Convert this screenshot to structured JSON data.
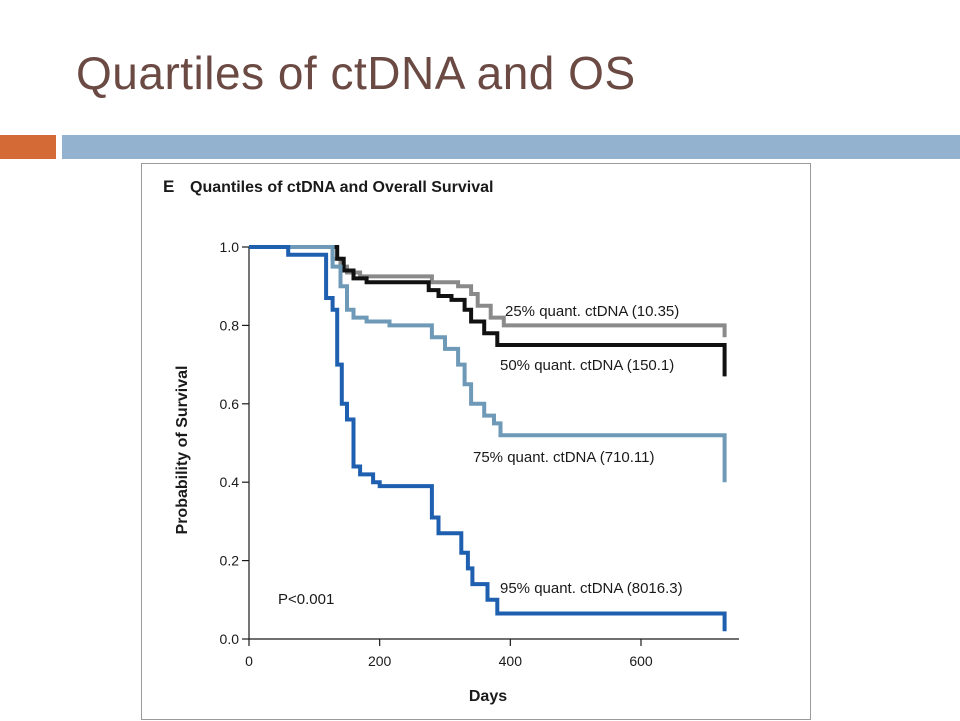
{
  "slide": {
    "title": "Quartiles of ctDNA and OS"
  },
  "colors": {
    "title": "#6b4a44",
    "accent_orange": "#d46a35",
    "accent_blue": "#93b2d0"
  },
  "chart_data": {
    "type": "line",
    "step": true,
    "panel_letter": "E",
    "title": "Quantiles of ctDNA and Overall Survival",
    "xlabel": "Days",
    "ylabel": "Probability of Survival",
    "xlim": [
      0,
      750
    ],
    "ylim": [
      0,
      1.0
    ],
    "x_ticks": [
      0,
      200,
      400,
      600
    ],
    "x_tick_labels": [
      "0",
      "200",
      "400",
      "600"
    ],
    "y_ticks": [
      0,
      0.2,
      0.4,
      0.6,
      0.8,
      1.0
    ],
    "y_tick_labels": [
      "0.0",
      "0.2",
      "0.4",
      "0.6",
      "0.8",
      "1.0"
    ],
    "annotation": "P<0.001",
    "grid": false,
    "series": [
      {
        "name": "25% quant. ctDNA (10.35)",
        "color": "#8a8a8a",
        "points": [
          [
            0,
            1.0
          ],
          [
            128,
            1.0
          ],
          [
            128,
            0.97
          ],
          [
            140,
            0.97
          ],
          [
            140,
            0.95
          ],
          [
            150,
            0.95
          ],
          [
            150,
            0.935
          ],
          [
            170,
            0.935
          ],
          [
            170,
            0.925
          ],
          [
            280,
            0.925
          ],
          [
            280,
            0.91
          ],
          [
            320,
            0.91
          ],
          [
            320,
            0.9
          ],
          [
            340,
            0.9
          ],
          [
            340,
            0.88
          ],
          [
            350,
            0.88
          ],
          [
            350,
            0.85
          ],
          [
            370,
            0.85
          ],
          [
            370,
            0.82
          ],
          [
            390,
            0.82
          ],
          [
            390,
            0.8
          ],
          [
            728,
            0.8
          ],
          [
            728,
            0.77
          ]
        ]
      },
      {
        "name": "50% quant. ctDNA (150.1)",
        "color": "#111111",
        "points": [
          [
            0,
            1.0
          ],
          [
            135,
            1.0
          ],
          [
            135,
            0.97
          ],
          [
            145,
            0.97
          ],
          [
            145,
            0.94
          ],
          [
            160,
            0.94
          ],
          [
            160,
            0.92
          ],
          [
            180,
            0.92
          ],
          [
            180,
            0.91
          ],
          [
            275,
            0.91
          ],
          [
            275,
            0.89
          ],
          [
            290,
            0.89
          ],
          [
            290,
            0.875
          ],
          [
            310,
            0.875
          ],
          [
            310,
            0.865
          ],
          [
            330,
            0.865
          ],
          [
            330,
            0.84
          ],
          [
            340,
            0.84
          ],
          [
            340,
            0.81
          ],
          [
            360,
            0.81
          ],
          [
            360,
            0.78
          ],
          [
            380,
            0.78
          ],
          [
            380,
            0.75
          ],
          [
            728,
            0.75
          ],
          [
            728,
            0.67
          ]
        ]
      },
      {
        "name": "75% quant. ctDNA (710.11)",
        "color": "#6e9ab8",
        "points": [
          [
            0,
            1.0
          ],
          [
            128,
            1.0
          ],
          [
            128,
            0.95
          ],
          [
            140,
            0.95
          ],
          [
            140,
            0.9
          ],
          [
            150,
            0.9
          ],
          [
            150,
            0.84
          ],
          [
            160,
            0.84
          ],
          [
            160,
            0.82
          ],
          [
            180,
            0.82
          ],
          [
            180,
            0.81
          ],
          [
            215,
            0.81
          ],
          [
            215,
            0.8
          ],
          [
            280,
            0.8
          ],
          [
            280,
            0.77
          ],
          [
            300,
            0.77
          ],
          [
            300,
            0.74
          ],
          [
            320,
            0.74
          ],
          [
            320,
            0.7
          ],
          [
            330,
            0.7
          ],
          [
            330,
            0.65
          ],
          [
            340,
            0.65
          ],
          [
            340,
            0.6
          ],
          [
            360,
            0.6
          ],
          [
            360,
            0.57
          ],
          [
            375,
            0.57
          ],
          [
            375,
            0.55
          ],
          [
            385,
            0.55
          ],
          [
            385,
            0.52
          ],
          [
            728,
            0.52
          ],
          [
            728,
            0.4
          ]
        ]
      },
      {
        "name": "95% quant. ctDNA (8016.3)",
        "color": "#1f5fb0",
        "points": [
          [
            0,
            1.0
          ],
          [
            60,
            1.0
          ],
          [
            60,
            0.98
          ],
          [
            118,
            0.98
          ],
          [
            118,
            0.87
          ],
          [
            128,
            0.87
          ],
          [
            128,
            0.84
          ],
          [
            135,
            0.84
          ],
          [
            135,
            0.7
          ],
          [
            142,
            0.7
          ],
          [
            142,
            0.6
          ],
          [
            150,
            0.6
          ],
          [
            150,
            0.56
          ],
          [
            160,
            0.56
          ],
          [
            160,
            0.44
          ],
          [
            170,
            0.44
          ],
          [
            170,
            0.42
          ],
          [
            190,
            0.42
          ],
          [
            190,
            0.4
          ],
          [
            200,
            0.4
          ],
          [
            200,
            0.39
          ],
          [
            280,
            0.39
          ],
          [
            280,
            0.31
          ],
          [
            290,
            0.31
          ],
          [
            290,
            0.27
          ],
          [
            325,
            0.27
          ],
          [
            325,
            0.22
          ],
          [
            335,
            0.22
          ],
          [
            335,
            0.18
          ],
          [
            342,
            0.18
          ],
          [
            342,
            0.14
          ],
          [
            365,
            0.14
          ],
          [
            365,
            0.1
          ],
          [
            380,
            0.1
          ],
          [
            380,
            0.065
          ],
          [
            728,
            0.065
          ],
          [
            728,
            0.02
          ]
        ]
      }
    ]
  }
}
